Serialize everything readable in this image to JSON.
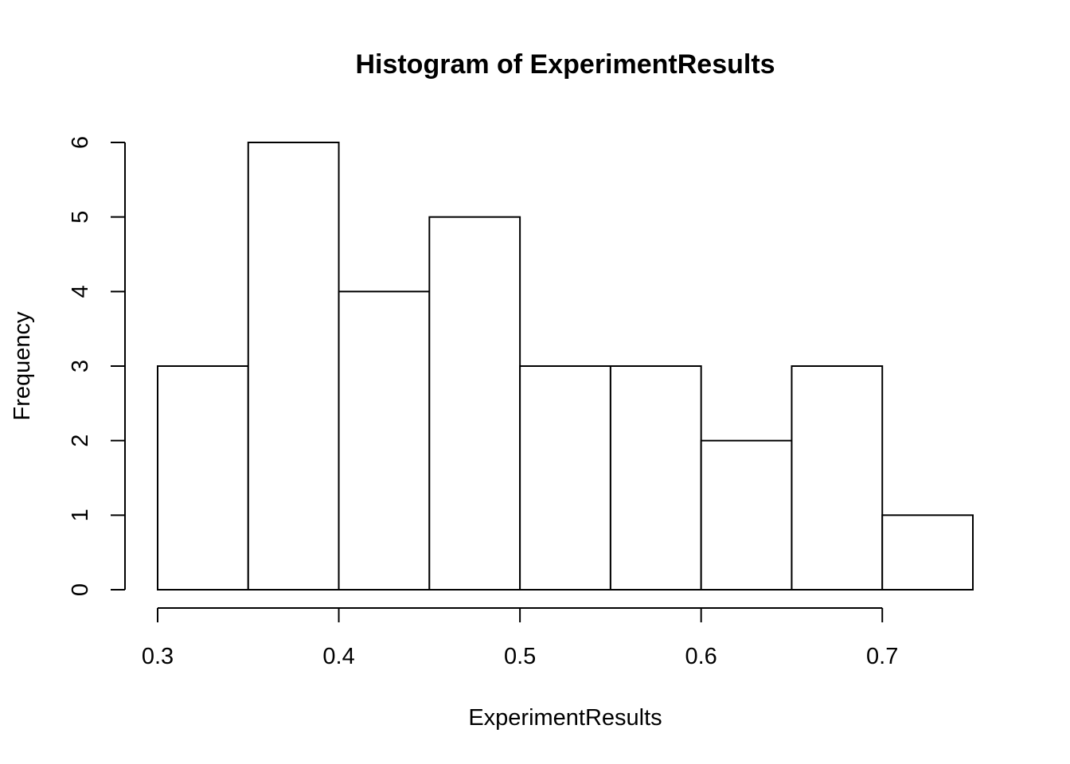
{
  "chart_data": {
    "type": "bar",
    "title": "Histogram of ExperimentResults",
    "xlabel": "ExperimentResults",
    "ylabel": "Frequency",
    "bins": [
      {
        "from": 0.3,
        "to": 0.35,
        "count": 3
      },
      {
        "from": 0.35,
        "to": 0.4,
        "count": 6
      },
      {
        "from": 0.4,
        "to": 0.45,
        "count": 4
      },
      {
        "from": 0.45,
        "to": 0.5,
        "count": 5
      },
      {
        "from": 0.5,
        "to": 0.55,
        "count": 3
      },
      {
        "from": 0.55,
        "to": 0.6,
        "count": 3
      },
      {
        "from": 0.6,
        "to": 0.65,
        "count": 2
      },
      {
        "from": 0.65,
        "to": 0.7,
        "count": 3
      },
      {
        "from": 0.7,
        "to": 0.75,
        "count": 1
      }
    ],
    "xticks": [
      "0.3",
      "0.4",
      "0.5",
      "0.6",
      "0.7"
    ],
    "yticks": [
      "0",
      "1",
      "2",
      "3",
      "4",
      "5",
      "6"
    ],
    "xlim": [
      0.3,
      0.75
    ],
    "ylim": [
      0,
      6
    ],
    "grid": false,
    "bar_fill": "#ffffff",
    "bar_stroke": "#000000"
  }
}
